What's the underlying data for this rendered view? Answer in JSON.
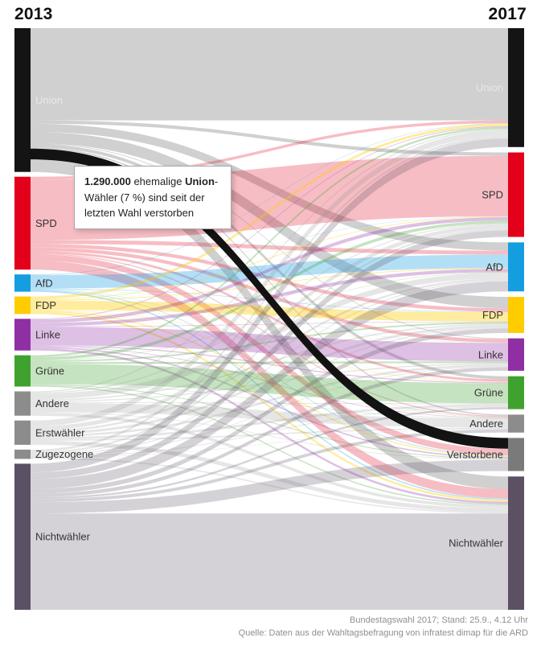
{
  "header": {
    "year_left": "2013",
    "year_right": "2017"
  },
  "tooltip": {
    "value_bold": "1.290.000",
    "text_mid": " ehemalige ",
    "party_bold": "Union",
    "text_end": "-Wähler (7 %) sind seit der letzten Wahl verstorben"
  },
  "footer": {
    "line1": "Bundestagswahl 2017; Stand: 25.9., 4.12 Uhr",
    "line2": "Quelle: Daten aus der Wahltagsbefragung von infratest dimap für die ARD"
  },
  "chart_data": {
    "type": "sankey",
    "left_column_label": "2013",
    "right_column_label": "2017",
    "values_unit": "thousand voters, estimated from ribbon thickness (only the highlighted flow is labeled on screen)",
    "legend_position": "none",
    "nodes_left": [
      {
        "name": "Union",
        "color": "#141414",
        "label_color": "#e8e8e8",
        "flow_opacity": 0.2
      },
      {
        "name": "SPD",
        "color": "#e2001a",
        "flow_opacity": 0.26
      },
      {
        "name": "AfD",
        "color": "#149ee0",
        "flow_opacity": 0.33
      },
      {
        "name": "FDP",
        "color": "#ffcc00",
        "flow_opacity": 0.38
      },
      {
        "name": "Linke",
        "color": "#8f2fa3",
        "flow_opacity": 0.3
      },
      {
        "name": "Grüne",
        "color": "#3fa22e",
        "flow_opacity": 0.3
      },
      {
        "name": "Andere",
        "color": "#8c8c8c",
        "flow_opacity": 0.22
      },
      {
        "name": "Erstwähler",
        "color": "#8c8c8c",
        "flow_opacity": 0.22
      },
      {
        "name": "Zugezogene",
        "color": "#8c8c8c",
        "flow_opacity": 0.22
      },
      {
        "name": "Nichtwähler",
        "color": "#5c5064",
        "flow_opacity": 0.26
      }
    ],
    "nodes_right": [
      {
        "name": "Union",
        "color": "#141414",
        "label_color": "#e8e8e8"
      },
      {
        "name": "SPD",
        "color": "#e2001a"
      },
      {
        "name": "AfD",
        "color": "#149ee0"
      },
      {
        "name": "FDP",
        "color": "#ffcc00"
      },
      {
        "name": "Linke",
        "color": "#8f2fa3"
      },
      {
        "name": "Grüne",
        "color": "#3fa22e"
      },
      {
        "name": "Andere",
        "color": "#8c8c8c"
      },
      {
        "name": "Verstorbene",
        "color": "#7a7a7a"
      },
      {
        "name": "Nichtwähler",
        "color": "#5c5064"
      }
    ],
    "highlight": {
      "source": "Union",
      "target": "Verstorbene",
      "value": 1290,
      "label": "1.290.000 (7 %)",
      "color": "#0b0b0b"
    },
    "links": [
      {
        "source": "Union",
        "target": "Union",
        "value": 11000
      },
      {
        "source": "Union",
        "target": "SPD",
        "value": 400
      },
      {
        "source": "Union",
        "target": "AfD",
        "value": 980
      },
      {
        "source": "Union",
        "target": "FDP",
        "value": 1360
      },
      {
        "source": "Union",
        "target": "Linke",
        "value": 90
      },
      {
        "source": "Union",
        "target": "Grüne",
        "value": 380
      },
      {
        "source": "Union",
        "target": "Andere",
        "value": 160
      },
      {
        "source": "Union",
        "target": "Verstorbene",
        "value": 1290,
        "highlight": true
      },
      {
        "source": "Union",
        "target": "Nichtwähler",
        "value": 1500
      },
      {
        "source": "SPD",
        "target": "Union",
        "value": 340
      },
      {
        "source": "SPD",
        "target": "SPD",
        "value": 7200
      },
      {
        "source": "SPD",
        "target": "AfD",
        "value": 470
      },
      {
        "source": "SPD",
        "target": "FDP",
        "value": 430
      },
      {
        "source": "SPD",
        "target": "Linke",
        "value": 410
      },
      {
        "source": "SPD",
        "target": "Grüne",
        "value": 280
      },
      {
        "source": "SPD",
        "target": "Andere",
        "value": 110
      },
      {
        "source": "SPD",
        "target": "Verstorbene",
        "value": 740
      },
      {
        "source": "SPD",
        "target": "Nichtwähler",
        "value": 1100
      },
      {
        "source": "AfD",
        "target": "Union",
        "value": 50
      },
      {
        "source": "AfD",
        "target": "SPD",
        "value": 30
      },
      {
        "source": "AfD",
        "target": "AfD",
        "value": 1600
      },
      {
        "source": "AfD",
        "target": "FDP",
        "value": 60
      },
      {
        "source": "AfD",
        "target": "Linke",
        "value": 30
      },
      {
        "source": "AfD",
        "target": "Grüne",
        "value": 10
      },
      {
        "source": "AfD",
        "target": "Andere",
        "value": 40
      },
      {
        "source": "AfD",
        "target": "Verstorbene",
        "value": 80
      },
      {
        "source": "AfD",
        "target": "Nichtwähler",
        "value": 160
      },
      {
        "source": "FDP",
        "target": "Union",
        "value": 300
      },
      {
        "source": "FDP",
        "target": "SPD",
        "value": 80
      },
      {
        "source": "FDP",
        "target": "AfD",
        "value": 100
      },
      {
        "source": "FDP",
        "target": "FDP",
        "value": 1100
      },
      {
        "source": "FDP",
        "target": "Linke",
        "value": 20
      },
      {
        "source": "FDP",
        "target": "Grüne",
        "value": 50
      },
      {
        "source": "FDP",
        "target": "Andere",
        "value": 40
      },
      {
        "source": "FDP",
        "target": "Verstorbene",
        "value": 140
      },
      {
        "source": "FDP",
        "target": "Nichtwähler",
        "value": 250
      },
      {
        "source": "Linke",
        "target": "Union",
        "value": 90
      },
      {
        "source": "Linke",
        "target": "SPD",
        "value": 410
      },
      {
        "source": "Linke",
        "target": "AfD",
        "value": 400
      },
      {
        "source": "Linke",
        "target": "FDP",
        "value": 60
      },
      {
        "source": "Linke",
        "target": "Linke",
        "value": 2200
      },
      {
        "source": "Linke",
        "target": "Grüne",
        "value": 120
      },
      {
        "source": "Linke",
        "target": "Andere",
        "value": 70
      },
      {
        "source": "Linke",
        "target": "Verstorbene",
        "value": 160
      },
      {
        "source": "Linke",
        "target": "Nichtwähler",
        "value": 270
      },
      {
        "source": "Grüne",
        "target": "Union",
        "value": 240
      },
      {
        "source": "Grüne",
        "target": "SPD",
        "value": 350
      },
      {
        "source": "Grüne",
        "target": "AfD",
        "value": 40
      },
      {
        "source": "Grüne",
        "target": "FDP",
        "value": 180
      },
      {
        "source": "Grüne",
        "target": "Linke",
        "value": 210
      },
      {
        "source": "Grüne",
        "target": "Grüne",
        "value": 2400
      },
      {
        "source": "Grüne",
        "target": "Andere",
        "value": 50
      },
      {
        "source": "Grüne",
        "target": "Verstorbene",
        "value": 110
      },
      {
        "source": "Grüne",
        "target": "Nichtwähler",
        "value": 150
      },
      {
        "source": "Andere",
        "target": "Union",
        "value": 150
      },
      {
        "source": "Andere",
        "target": "SPD",
        "value": 130
      },
      {
        "source": "Andere",
        "target": "AfD",
        "value": 690
      },
      {
        "source": "Andere",
        "target": "FDP",
        "value": 170
      },
      {
        "source": "Andere",
        "target": "Linke",
        "value": 140
      },
      {
        "source": "Andere",
        "target": "Grüne",
        "value": 90
      },
      {
        "source": "Andere",
        "target": "Andere",
        "value": 1100
      },
      {
        "source": "Andere",
        "target": "Verstorbene",
        "value": 80
      },
      {
        "source": "Andere",
        "target": "Nichtwähler",
        "value": 350
      },
      {
        "source": "Erstwähler",
        "target": "Union",
        "value": 700
      },
      {
        "source": "Erstwähler",
        "target": "SPD",
        "value": 480
      },
      {
        "source": "Erstwähler",
        "target": "AfD",
        "value": 250
      },
      {
        "source": "Erstwähler",
        "target": "FDP",
        "value": 300
      },
      {
        "source": "Erstwähler",
        "target": "Linke",
        "value": 260
      },
      {
        "source": "Erstwähler",
        "target": "Grüne",
        "value": 280
      },
      {
        "source": "Erstwähler",
        "target": "Andere",
        "value": 150
      },
      {
        "source": "Erstwähler",
        "target": "Nichtwähler",
        "value": 480
      },
      {
        "source": "Zugezogene",
        "target": "Union",
        "value": 280
      },
      {
        "source": "Zugezogene",
        "target": "SPD",
        "value": 210
      },
      {
        "source": "Zugezogene",
        "target": "AfD",
        "value": 120
      },
      {
        "source": "Zugezogene",
        "target": "FDP",
        "value": 110
      },
      {
        "source": "Zugezogene",
        "target": "Linke",
        "value": 90
      },
      {
        "source": "Zugezogene",
        "target": "Grüne",
        "value": 90
      },
      {
        "source": "Zugezogene",
        "target": "Andere",
        "value": 50
      },
      {
        "source": "Zugezogene",
        "target": "Nichtwähler",
        "value": 150
      },
      {
        "source": "Nichtwähler",
        "target": "Union",
        "value": 1040
      },
      {
        "source": "Nichtwähler",
        "target": "SPD",
        "value": 790
      },
      {
        "source": "Nichtwähler",
        "target": "AfD",
        "value": 1200
      },
      {
        "source": "Nichtwähler",
        "target": "FDP",
        "value": 540
      },
      {
        "source": "Nichtwähler",
        "target": "Linke",
        "value": 420
      },
      {
        "source": "Nichtwähler",
        "target": "Grüne",
        "value": 230
      },
      {
        "source": "Nichtwähler",
        "target": "Andere",
        "value": 370
      },
      {
        "source": "Nichtwähler",
        "target": "Verstorbene",
        "value": 1350
      },
      {
        "source": "Nichtwähler",
        "target": "Nichtwähler",
        "value": 11500
      }
    ]
  }
}
